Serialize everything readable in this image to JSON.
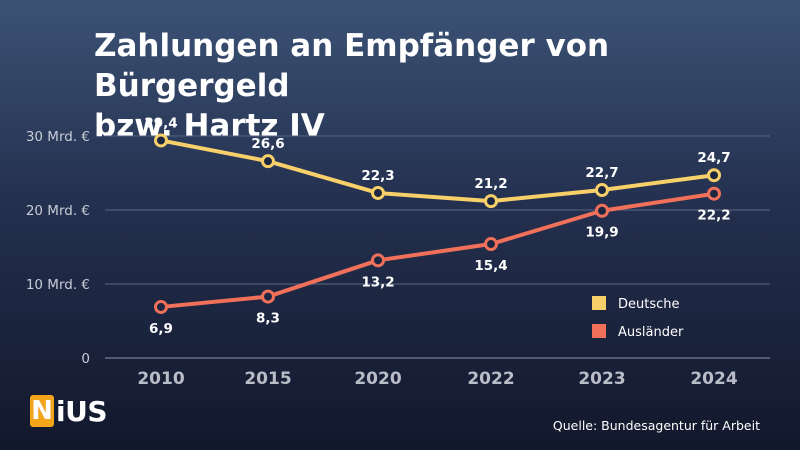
{
  "title_line1": "Zahlungen an Empfänger von Bürgergeld",
  "title_line2": "bzw. Hartz IV",
  "source": "Quelle: Bundesagentur für Arbeit",
  "logo": {
    "mark": "N",
    "text": "iUS"
  },
  "chart_data": {
    "type": "line",
    "x": [
      "2010",
      "2015",
      "2020",
      "2022",
      "2023",
      "2024"
    ],
    "ylim": [
      0,
      30
    ],
    "yticks": [
      0,
      10,
      20,
      30
    ],
    "ytick_labels": [
      "0",
      "10 Mrd. €",
      "20 Mrd. €",
      "30 Mrd. €"
    ],
    "grid": true,
    "legend_position": "bottom-right",
    "series": [
      {
        "name": "Deutsche",
        "color": "#f7d06a",
        "values": [
          29.4,
          26.6,
          22.3,
          21.2,
          22.7,
          24.7
        ],
        "labels": [
          "29,4",
          "26,6",
          "22,3",
          "21,2",
          "22,7",
          "24,7"
        ]
      },
      {
        "name": "Ausländer",
        "color": "#f0705a",
        "values": [
          6.9,
          8.3,
          13.2,
          15.4,
          19.9,
          22.2
        ],
        "labels": [
          "6,9",
          "8,3",
          "13,2",
          "15,4",
          "19,9",
          "22,2"
        ]
      }
    ]
  }
}
